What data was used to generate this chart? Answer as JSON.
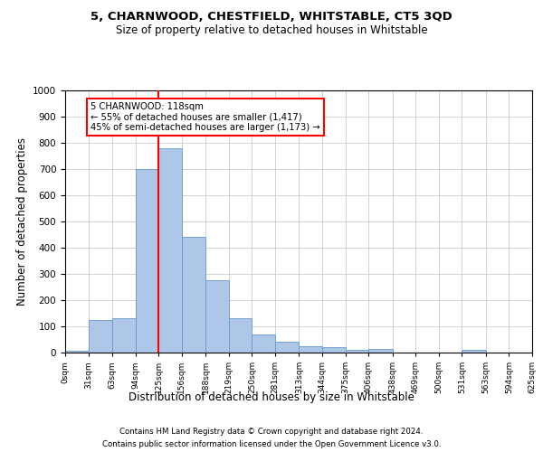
{
  "title": "5, CHARNWOOD, CHESTFIELD, WHITSTABLE, CT5 3QD",
  "subtitle": "Size of property relative to detached houses in Whitstable",
  "xlabel": "Distribution of detached houses by size in Whitstable",
  "ylabel": "Number of detached properties",
  "footer_line1": "Contains HM Land Registry data © Crown copyright and database right 2024.",
  "footer_line2": "Contains public sector information licensed under the Open Government Licence v3.0.",
  "bar_values": [
    8,
    125,
    130,
    700,
    780,
    440,
    275,
    130,
    70,
    40,
    25,
    22,
    12,
    13,
    0,
    0,
    0,
    9,
    0,
    0
  ],
  "bin_edges": [
    0,
    31,
    63,
    94,
    125,
    156,
    188,
    219,
    250,
    281,
    313,
    344,
    375,
    406,
    438,
    469,
    500,
    531,
    563,
    594,
    625
  ],
  "x_tick_labels": [
    "0sqm",
    "31sqm",
    "63sqm",
    "94sqm",
    "125sqm",
    "156sqm",
    "188sqm",
    "219sqm",
    "250sqm",
    "281sqm",
    "313sqm",
    "344sqm",
    "375sqm",
    "406sqm",
    "438sqm",
    "469sqm",
    "500sqm",
    "531sqm",
    "563sqm",
    "594sqm",
    "625sqm"
  ],
  "ylim": [
    0,
    1000
  ],
  "bar_color": "#aec6e8",
  "bar_edgecolor": "#6699cc",
  "grid_color": "#cccccc",
  "vline_x": 125,
  "vline_color": "red",
  "annotation_title": "5 CHARNWOOD: 118sqm",
  "annotation_line2": "← 55% of detached houses are smaller (1,417)",
  "annotation_line3": "45% of semi-detached houses are larger (1,173) →",
  "annotation_box_edgecolor": "red",
  "annotation_box_facecolor": "white"
}
